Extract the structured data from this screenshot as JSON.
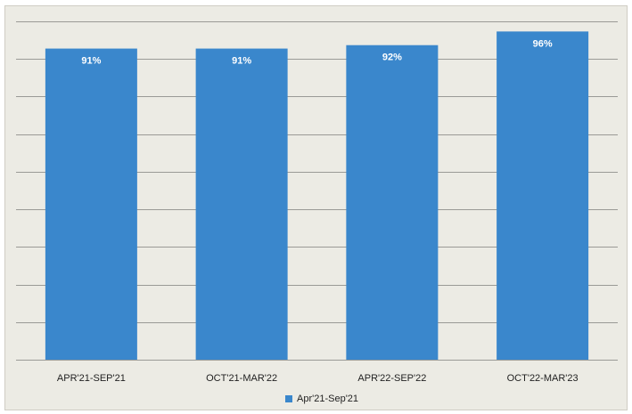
{
  "chart_data": {
    "type": "bar",
    "categories": [
      "APR'21-SEP'21",
      "OCT'21-MAR'22",
      "APR'22-SEP'22",
      "OCT'22-MAR'23"
    ],
    "series": [
      {
        "name": "Apr'21-Sep'21",
        "values": [
          91,
          91,
          92,
          96
        ],
        "labels": [
          "91%",
          "91%",
          "92%",
          "96%"
        ],
        "color": "#3a87cc"
      }
    ],
    "ylim": [
      0,
      100
    ],
    "grid": true,
    "legend_position": "bottom-center"
  }
}
